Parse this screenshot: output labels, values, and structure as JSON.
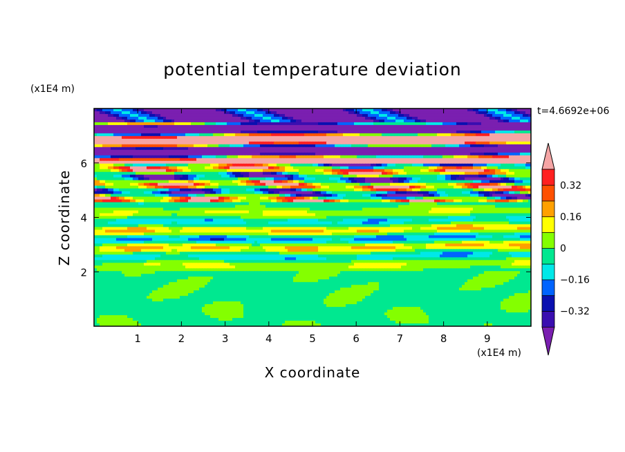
{
  "chart_data": {
    "type": "heatmap",
    "title": "potential temperature deviation",
    "xlabel": "X coordinate",
    "ylabel": "Z coordinate",
    "x_units": "(x1E4 m)",
    "y_units": "(x1E4 m)",
    "time_label": "t=4.6692e+06",
    "xlim": [
      0,
      10
    ],
    "ylim": [
      0,
      8
    ],
    "x_ticks": [
      1,
      2,
      3,
      4,
      5,
      6,
      7,
      8,
      9
    ],
    "y_ticks": [
      2,
      4,
      6
    ],
    "colorbar": {
      "levels": [
        -0.4,
        -0.32,
        -0.24,
        -0.16,
        -0.08,
        0,
        0.08,
        0.16,
        0.24,
        0.32,
        0.4
      ],
      "labels": [
        "0.32",
        "0.16",
        "0",
        "−0.16",
        "−0.32"
      ],
      "label_values": [
        0.32,
        0.16,
        0,
        -0.16,
        -0.32
      ],
      "colors": [
        "#7a1fb0",
        "#3a0eb0",
        "#0a10b0",
        "#0064ff",
        "#00e8e8",
        "#00e890",
        "#84ff00",
        "#ffff00",
        "#ffa000",
        "#ff5000",
        "#ff2020",
        "#f5a5a5"
      ],
      "extend": "both"
    },
    "bands": [
      {
        "z": [
          7.5,
          8.0
        ],
        "dominant": "purple"
      },
      {
        "z": [
          6.0,
          7.5
        ],
        "dominant": "alternating pink / purple layers"
      },
      {
        "z": [
          4.6,
          6.0
        ],
        "dominant": "mixed red / orange / blue filaments"
      },
      {
        "z": [
          2.0,
          4.6
        ],
        "dominant": "green with cyan and yellow streaks"
      },
      {
        "z": [
          0.0,
          2.0
        ],
        "dominant": "green and yellow-green patches"
      }
    ]
  }
}
